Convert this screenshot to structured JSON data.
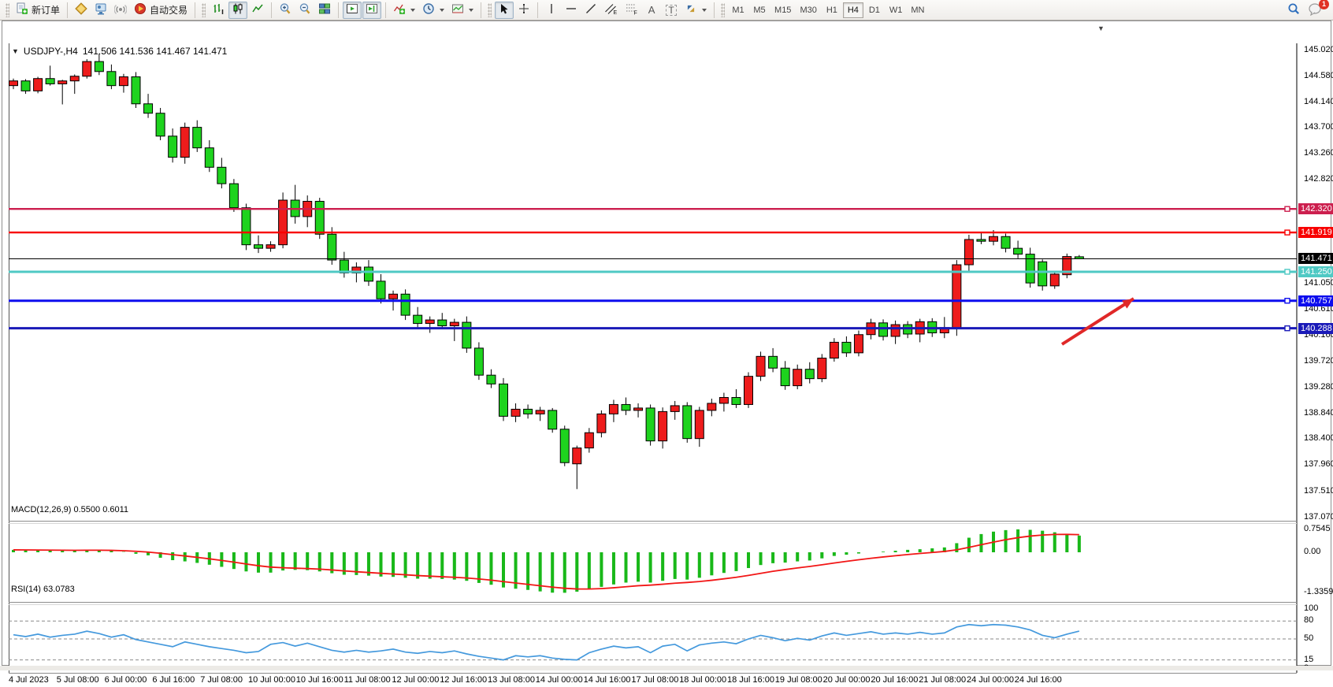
{
  "toolbar": {
    "new_order_label": "新订单",
    "algo_label": "自动交易",
    "text_tool_letter": "A",
    "label_tool_letter": "T",
    "channel_letter": "E",
    "fibo_letter": "F",
    "timeframes": [
      "M1",
      "M5",
      "M15",
      "M30",
      "H1",
      "H4",
      "D1",
      "W1",
      "MN"
    ],
    "active_timeframe": "H4",
    "notification_badge": "1"
  },
  "chart": {
    "collapse_arrow": "▼",
    "symbol_period": "USDJPY-,H4",
    "title_ohlc": "141.506 141.536 141.467 141.471",
    "shift_marker": "▼"
  },
  "price_axis": {
    "plain_ticks": [
      145.02,
      144.58,
      144.14,
      143.7,
      143.26,
      142.82,
      141.05,
      140.61,
      140.16,
      139.72,
      139.28,
      138.84,
      138.4,
      137.96,
      137.51,
      137.07
    ],
    "current_price_label": {
      "text": "141.471",
      "bg": "#000000"
    }
  },
  "hlines": [
    {
      "price": 142.32,
      "label": "142.320",
      "color": "#cc1f4e",
      "width": 2.4
    },
    {
      "price": 141.919,
      "label": "141.919",
      "color": "#f80000",
      "width": 2.4
    },
    {
      "price": 141.25,
      "label": "141.250",
      "color": "#4fc9c4",
      "width": 3
    },
    {
      "price": 140.757,
      "label": "140.757",
      "color": "#0d0dee",
      "width": 3
    },
    {
      "price": 140.288,
      "label": "140.288",
      "color": "#1a1ab8",
      "width": 3
    }
  ],
  "chart_data": {
    "type": "candlestick",
    "symbol": "USDJPY-",
    "timeframe": "H4",
    "start_time": "4 Jul 2023 00:00",
    "current_price": 141.471,
    "ylim": [
      137.07,
      145.14
    ],
    "colors": {
      "up": "#ee1c1c",
      "down": "#1ed31e",
      "outline": "#000000",
      "bid_line": "#000000"
    },
    "ohlc": [
      [
        144.42,
        144.54,
        144.36,
        144.5
      ],
      [
        144.5,
        144.53,
        144.28,
        144.33
      ],
      [
        144.33,
        144.57,
        144.29,
        144.54
      ],
      [
        144.54,
        144.76,
        144.42,
        144.45
      ],
      [
        144.45,
        144.52,
        144.1,
        144.5
      ],
      [
        144.5,
        144.61,
        144.28,
        144.58
      ],
      [
        144.58,
        144.87,
        144.54,
        144.83
      ],
      [
        144.83,
        144.96,
        144.6,
        144.66
      ],
      [
        144.66,
        144.78,
        144.36,
        144.42
      ],
      [
        144.42,
        144.62,
        144.3,
        144.57
      ],
      [
        144.57,
        144.65,
        144.04,
        144.11
      ],
      [
        144.11,
        144.28,
        143.87,
        143.95
      ],
      [
        143.95,
        144.04,
        143.49,
        143.56
      ],
      [
        143.56,
        143.69,
        143.11,
        143.2
      ],
      [
        143.2,
        143.79,
        143.09,
        143.71
      ],
      [
        143.71,
        143.83,
        143.29,
        143.36
      ],
      [
        143.36,
        143.49,
        142.95,
        143.03
      ],
      [
        143.03,
        143.19,
        142.67,
        142.75
      ],
      [
        142.75,
        142.83,
        142.27,
        142.34
      ],
      [
        142.34,
        142.41,
        141.62,
        141.71
      ],
      [
        141.71,
        141.87,
        141.57,
        141.65
      ],
      [
        141.65,
        141.77,
        141.59,
        141.71
      ],
      [
        141.71,
        142.6,
        141.65,
        142.47
      ],
      [
        142.47,
        142.73,
        142.07,
        142.19
      ],
      [
        142.19,
        142.55,
        142.01,
        142.45
      ],
      [
        142.45,
        142.51,
        141.81,
        141.89
      ],
      [
        141.89,
        142.01,
        141.37,
        141.45
      ],
      [
        141.45,
        141.59,
        141.15,
        141.23
      ],
      [
        141.23,
        141.41,
        141.07,
        141.33
      ],
      [
        141.33,
        141.45,
        141.01,
        141.09
      ],
      [
        141.09,
        141.21,
        140.71,
        140.79
      ],
      [
        140.79,
        140.93,
        140.59,
        140.87
      ],
      [
        140.87,
        140.95,
        140.43,
        140.51
      ],
      [
        140.51,
        140.65,
        140.29,
        140.37
      ],
      [
        140.37,
        140.49,
        140.21,
        140.43
      ],
      [
        140.43,
        140.55,
        140.27,
        140.33
      ],
      [
        140.33,
        140.45,
        140.07,
        140.39
      ],
      [
        140.39,
        140.49,
        139.87,
        139.95
      ],
      [
        139.95,
        140.05,
        139.41,
        139.49
      ],
      [
        139.49,
        139.59,
        139.27,
        139.34
      ],
      [
        139.34,
        139.44,
        138.71,
        138.79
      ],
      [
        138.79,
        139.01,
        138.69,
        138.91
      ],
      [
        138.91,
        138.99,
        138.75,
        138.83
      ],
      [
        138.83,
        138.95,
        138.71,
        138.89
      ],
      [
        138.89,
        138.93,
        138.51,
        138.57
      ],
      [
        138.57,
        138.63,
        137.94,
        138.0
      ],
      [
        137.98,
        138.29,
        137.55,
        138.25
      ],
      [
        138.25,
        138.59,
        138.17,
        138.51
      ],
      [
        138.51,
        138.89,
        138.43,
        138.83
      ],
      [
        138.83,
        139.07,
        138.69,
        138.99
      ],
      [
        138.99,
        139.11,
        138.81,
        138.89
      ],
      [
        138.89,
        139.01,
        138.77,
        138.93
      ],
      [
        138.93,
        138.99,
        138.29,
        138.37
      ],
      [
        138.37,
        138.94,
        138.24,
        138.87
      ],
      [
        138.87,
        139.05,
        138.73,
        138.97
      ],
      [
        138.97,
        139.03,
        138.34,
        138.41
      ],
      [
        138.41,
        138.95,
        138.27,
        138.89
      ],
      [
        138.89,
        139.09,
        138.79,
        139.01
      ],
      [
        139.01,
        139.19,
        138.87,
        139.11
      ],
      [
        139.11,
        139.25,
        138.93,
        138.99
      ],
      [
        138.99,
        139.54,
        138.93,
        139.47
      ],
      [
        139.47,
        139.89,
        139.39,
        139.81
      ],
      [
        139.81,
        139.95,
        139.54,
        139.61
      ],
      [
        139.61,
        139.73,
        139.24,
        139.31
      ],
      [
        139.31,
        139.67,
        139.25,
        139.59
      ],
      [
        139.59,
        139.71,
        139.35,
        139.43
      ],
      [
        139.43,
        139.85,
        139.37,
        139.78
      ],
      [
        139.78,
        140.12,
        139.72,
        140.05
      ],
      [
        140.05,
        140.15,
        139.8,
        139.87
      ],
      [
        139.87,
        140.25,
        139.81,
        140.18
      ],
      [
        140.18,
        140.45,
        140.1,
        140.38
      ],
      [
        140.38,
        140.44,
        140.08,
        140.15
      ],
      [
        140.15,
        140.42,
        140.02,
        140.35
      ],
      [
        140.35,
        140.41,
        140.12,
        140.19
      ],
      [
        140.19,
        140.45,
        140.05,
        140.4
      ],
      [
        140.4,
        140.46,
        140.14,
        140.21
      ],
      [
        140.21,
        140.48,
        140.12,
        140.3
      ],
      [
        140.3,
        141.45,
        140.16,
        141.37
      ],
      [
        141.37,
        141.88,
        141.25,
        141.8
      ],
      [
        141.8,
        141.93,
        141.72,
        141.77
      ],
      [
        141.77,
        141.96,
        141.7,
        141.85
      ],
      [
        141.85,
        141.9,
        141.58,
        141.65
      ],
      [
        141.65,
        141.78,
        141.48,
        141.55
      ],
      [
        141.55,
        141.66,
        140.98,
        141.06
      ],
      [
        141.42,
        141.46,
        140.93,
        141.01
      ],
      [
        141.01,
        141.26,
        140.96,
        141.21
      ],
      [
        141.2,
        141.56,
        141.14,
        141.51
      ],
      [
        141.506,
        141.536,
        141.467,
        141.471
      ]
    ],
    "macd": {
      "label": "MACD(12,26,9)",
      "main_value": "0.5500",
      "signal_value": "0.6011",
      "axis_ticks": [
        {
          "v": 0.7545,
          "text": "0.7545"
        },
        {
          "v": 0.0,
          "text": "0.00"
        },
        {
          "v": -1.3359,
          "text": "-1.3359"
        }
      ],
      "histogram_color": "#1ed31e",
      "signal_color": "#f21616",
      "histogram": [
        0.08,
        0.07,
        0.06,
        0.06,
        0.05,
        0.06,
        0.08,
        0.07,
        0.04,
        0.01,
        -0.05,
        -0.1,
        -0.18,
        -0.26,
        -0.3,
        -0.35,
        -0.41,
        -0.48,
        -0.55,
        -0.63,
        -0.67,
        -0.67,
        -0.6,
        -0.58,
        -0.59,
        -0.63,
        -0.69,
        -0.74,
        -0.75,
        -0.77,
        -0.8,
        -0.81,
        -0.84,
        -0.87,
        -0.87,
        -0.88,
        -0.9,
        -0.94,
        -1.01,
        -1.07,
        -1.16,
        -1.2,
        -1.24,
        -1.29,
        -1.33,
        -1.336,
        -1.3,
        -1.22,
        -1.14,
        -1.06,
        -1.0,
        -0.97,
        -1.0,
        -0.94,
        -0.88,
        -0.9,
        -0.84,
        -0.76,
        -0.68,
        -0.62,
        -0.52,
        -0.42,
        -0.36,
        -0.34,
        -0.3,
        -0.27,
        -0.2,
        -0.12,
        -0.08,
        -0.04,
        0.0,
        0.02,
        0.05,
        0.08,
        0.1,
        0.13,
        0.16,
        0.3,
        0.48,
        0.6,
        0.68,
        0.73,
        0.755,
        0.74,
        0.71,
        0.66,
        0.6,
        0.55
      ]
    },
    "rsi": {
      "label": "RSI(14)",
      "value": "63.0783",
      "line_color": "#4499dd",
      "axis_ticks": [
        {
          "v": 100,
          "text": "100"
        },
        {
          "v": 80,
          "text": "80"
        },
        {
          "v": 50,
          "text": "50"
        },
        {
          "v": 15,
          "text": "15"
        },
        {
          "v": 0,
          "text": "0"
        }
      ],
      "dashed_levels": [
        80,
        50,
        15
      ],
      "values": [
        57,
        54,
        58,
        53,
        56,
        58,
        63,
        59,
        53,
        57,
        49,
        45,
        41,
        37,
        45,
        41,
        37,
        34,
        31,
        27,
        29,
        41,
        44,
        38,
        43,
        37,
        31,
        28,
        31,
        28,
        30,
        33,
        28,
        26,
        29,
        27,
        30,
        25,
        21,
        18,
        15,
        22,
        20,
        22,
        18,
        16,
        15,
        27,
        33,
        38,
        35,
        37,
        27,
        38,
        41,
        30,
        40,
        43,
        45,
        42,
        50,
        56,
        52,
        47,
        51,
        48,
        55,
        60,
        56,
        59,
        62,
        58,
        60,
        58,
        61,
        58,
        60,
        70,
        74,
        72,
        74,
        73,
        70,
        65,
        56,
        52,
        58,
        63.0783
      ]
    }
  },
  "time_axis": {
    "labels": [
      "4 Jul 2023",
      "5 Jul 08:00",
      "6 Jul 00:00",
      "6 Jul 16:00",
      "7 Jul 08:00",
      "10 Jul 00:00",
      "10 Jul 16:00",
      "11 Jul 08:00",
      "12 Jul 00:00",
      "12 Jul 16:00",
      "13 Jul 08:00",
      "14 Jul 00:00",
      "14 Jul 16:00",
      "17 Jul 08:00",
      "18 Jul 00:00",
      "18 Jul 16:00",
      "19 Jul 08:00",
      "20 Jul 00:00",
      "20 Jul 16:00",
      "21 Jul 08:00",
      "24 Jul 00:00",
      "24 Jul 16:00"
    ]
  },
  "annotations": {
    "trend_arrow": {
      "from": [
        1345,
        410
      ],
      "to": [
        1436,
        352
      ],
      "color": "#e02828"
    }
  }
}
